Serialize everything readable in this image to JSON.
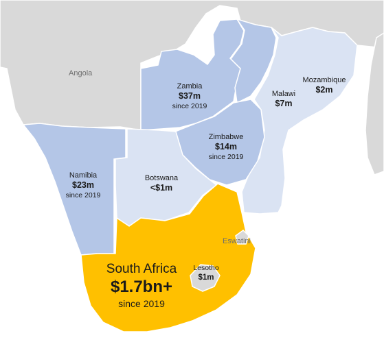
{
  "colors": {
    "background": "#ffffff",
    "neighbour": "#d9d9d9",
    "since_2019_tier": "#b4c6e7",
    "small_tier": "#dae3f3",
    "south_africa": "#ffc000",
    "border": "#ffffff"
  },
  "map": {
    "unlabeled_neighbours": [
      "Angola"
    ],
    "countries": [
      {
        "key": "south_africa",
        "name": "South Africa",
        "amount": "$1.7bn+",
        "since": "since 2019",
        "tier": "south_africa"
      },
      {
        "key": "namibia",
        "name": "Namibia",
        "amount": "$23m",
        "since": "since 2019",
        "tier": "since_2019_tier"
      },
      {
        "key": "botswana",
        "name": "Botswana",
        "amount": "<$1m",
        "since": "",
        "tier": "small_tier"
      },
      {
        "key": "zambia",
        "name": "Zambia",
        "amount": "$37m",
        "since": "since 2019",
        "tier": "since_2019_tier"
      },
      {
        "key": "zimbabwe",
        "name": "Zimbabwe",
        "amount": "$14m",
        "since": "since 2019",
        "tier": "since_2019_tier"
      },
      {
        "key": "malawi",
        "name": "Malawi",
        "amount": "$7m",
        "since": "",
        "tier": "small_tier"
      },
      {
        "key": "mozambique",
        "name": "Mozambique",
        "amount": "$2m",
        "since": "",
        "tier": "small_tier"
      },
      {
        "key": "lesotho",
        "name": "Lesotho",
        "amount": "$1m",
        "since": "",
        "tier": "neighbour"
      }
    ],
    "eswatini_label": "Eswatini"
  }
}
